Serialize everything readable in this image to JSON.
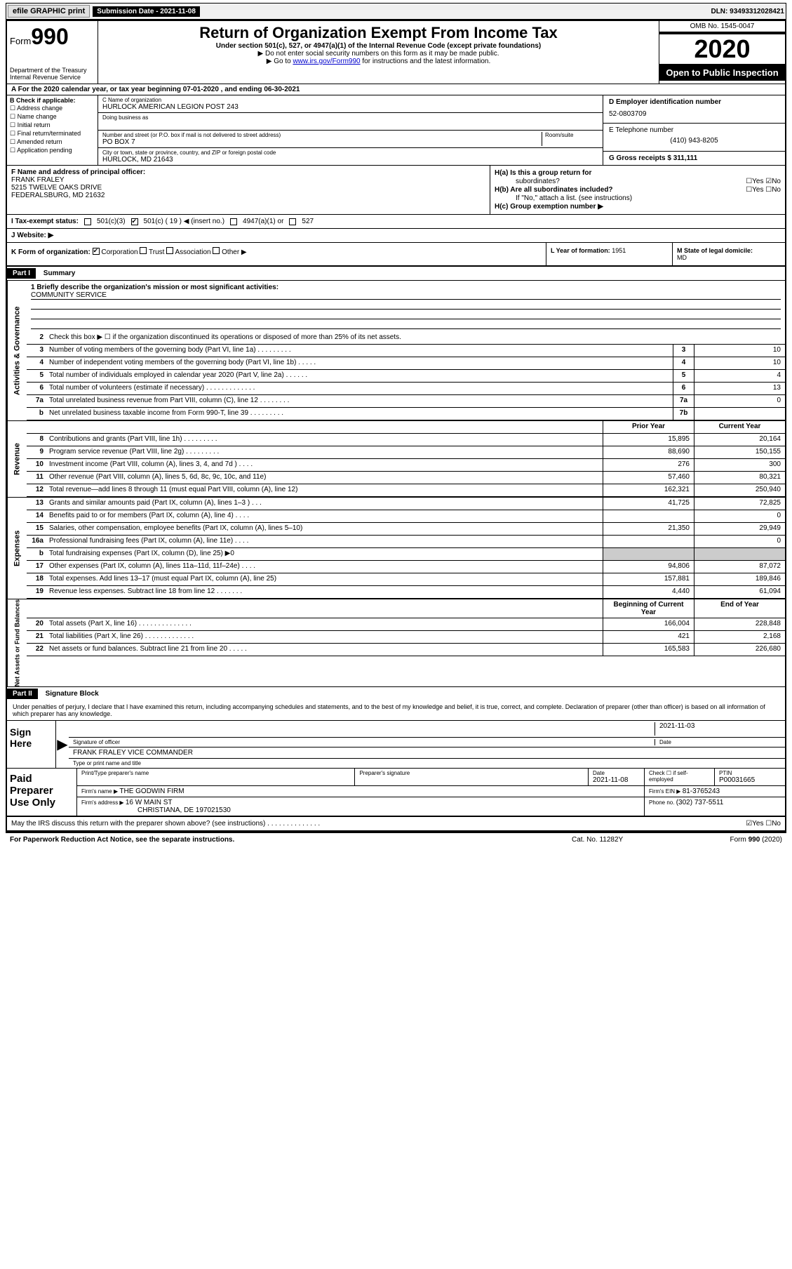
{
  "topbar": {
    "efile": "efile GRAPHIC print",
    "submission_label": "Submission Date - 2021-11-08",
    "dln": "DLN: 93493312028421"
  },
  "header": {
    "form_prefix": "Form",
    "form_number": "990",
    "dept": "Department of the Treasury\nInternal Revenue Service",
    "title": "Return of Organization Exempt From Income Tax",
    "subtitle": "Under section 501(c), 527, or 4947(a)(1) of the Internal Revenue Code (except private foundations)",
    "line1": "▶ Do not enter social security numbers on this form as it may be made public.",
    "line2_pre": "▶ Go to ",
    "line2_link": "www.irs.gov/Form990",
    "line2_post": " for instructions and the latest information.",
    "omb": "OMB No. 1545-0047",
    "year": "2020",
    "inspection": "Open to Public Inspection"
  },
  "line_a": "A For the 2020 calendar year, or tax year beginning 07-01-2020    , and ending 06-30-2021",
  "col_b": {
    "label": "B Check if applicable:",
    "opts": [
      "☐ Address change",
      "☐ Name change",
      "☐ Initial return",
      "☐ Final return/terminated",
      "☐ Amended return",
      "☐ Application pending"
    ]
  },
  "col_c": {
    "name_label": "C Name of organization",
    "name": "HURLOCK AMERICAN LEGION POST 243",
    "dba_label": "Doing business as",
    "street_label": "Number and street (or P.O. box if mail is not delivered to street address)",
    "room_label": "Room/suite",
    "street": "PO BOX 7",
    "city_label": "City or town, state or province, country, and ZIP or foreign postal code",
    "city": "HURLOCK, MD  21643"
  },
  "col_d": {
    "ein_label": "D Employer identification number",
    "ein": "52-0803709",
    "tel_label": "E Telephone number",
    "tel": "(410) 943-8205",
    "gross_label": "G Gross receipts $ ",
    "gross": "311,111"
  },
  "section_f": {
    "label": "F  Name and address of principal officer:",
    "name": "FRANK FRALEY",
    "addr1": "5215 TWELVE OAKS DRIVE",
    "addr2": "FEDERALSBURG, MD  21632"
  },
  "section_h": {
    "ha_label": "H(a)  Is this a group return for",
    "ha_sub": "subordinates?",
    "ha_yes": "☐Yes ☑No",
    "hb_label": "H(b)  Are all subordinates included?",
    "hb_yn": "☐Yes  ☐No",
    "hb_note": "If \"No,\" attach a list. (see instructions)",
    "hc_label": "H(c)  Group exemption number ▶"
  },
  "tax_status": {
    "label": "I    Tax-exempt status:",
    "opt1": "501(c)(3)",
    "opt2": "501(c) ( 19 ) ◀ (insert no.)",
    "opt3": "4947(a)(1) or",
    "opt4": "527"
  },
  "website": {
    "label": "J   Website: ▶"
  },
  "kl": {
    "k_label": "K Form of organization:",
    "k_corp": "Corporation",
    "k_trust": "Trust",
    "k_assoc": "Association",
    "k_other": "Other ▶",
    "l_label": "L Year of formation: ",
    "l_val": "1951",
    "m_label": "M State of legal domicile:",
    "m_val": "MD"
  },
  "part1": {
    "header": "Part I",
    "title": "Summary",
    "q1_label": "1  Briefly describe the organization's mission or most significant activities:",
    "q1_val": "COMMUNITY SERVICE",
    "q2": "Check this box ▶ ☐  if the organization discontinued its operations or disposed of more than 25% of its net assets.",
    "vert_ag": "Activities & Governance",
    "vert_rev": "Revenue",
    "vert_exp": "Expenses",
    "vert_na": "Net Assets or Fund Balances"
  },
  "rows_ag": [
    {
      "n": "3",
      "d": "Number of voting members of the governing body (Part VI, line 1a)  .   .   .   .   .   .   .   .   .",
      "b": "3",
      "v": "10"
    },
    {
      "n": "4",
      "d": "Number of independent voting members of the governing body (Part VI, line 1b)  .   .   .   .   .",
      "b": "4",
      "v": "10"
    },
    {
      "n": "5",
      "d": "Total number of individuals employed in calendar year 2020 (Part V, line 2a)  .   .   .   .   .   .",
      "b": "5",
      "v": "4"
    },
    {
      "n": "6",
      "d": "Total number of volunteers (estimate if necessary)  .   .   .   .   .   .   .   .   .   .   .   .   .",
      "b": "6",
      "v": "13"
    },
    {
      "n": "7a",
      "d": "Total unrelated business revenue from Part VIII, column (C), line 12  .   .   .   .   .   .   .   .",
      "b": "7a",
      "v": "0"
    },
    {
      "n": "b",
      "d": "Net unrelated business taxable income from Form 990-T, line 39  .   .   .   .   .   .   .   .   .",
      "b": "7b",
      "v": ""
    }
  ],
  "twocol_h": {
    "prior": "Prior Year",
    "curr": "Current Year"
  },
  "rows_rev": [
    {
      "n": "8",
      "d": "Contributions and grants (Part VIII, line 1h)  .   .   .   .   .   .   .   .   .",
      "p": "15,895",
      "c": "20,164"
    },
    {
      "n": "9",
      "d": "Program service revenue (Part VIII, line 2g)  .   .   .   .   .   .   .   .   .",
      "p": "88,690",
      "c": "150,155"
    },
    {
      "n": "10",
      "d": "Investment income (Part VIII, column (A), lines 3, 4, and 7d )  .   .   .   .",
      "p": "276",
      "c": "300"
    },
    {
      "n": "11",
      "d": "Other revenue (Part VIII, column (A), lines 5, 6d, 8c, 9c, 10c, and 11e)",
      "p": "57,460",
      "c": "80,321"
    },
    {
      "n": "12",
      "d": "Total revenue—add lines 8 through 11 (must equal Part VIII, column (A), line 12)",
      "p": "162,321",
      "c": "250,940"
    }
  ],
  "rows_exp": [
    {
      "n": "13",
      "d": "Grants and similar amounts paid (Part IX, column (A), lines 1–3 )  .   .   .",
      "p": "41,725",
      "c": "72,825"
    },
    {
      "n": "14",
      "d": "Benefits paid to or for members (Part IX, column (A), line 4)  .   .   .   .",
      "p": "",
      "c": "0"
    },
    {
      "n": "15",
      "d": "Salaries, other compensation, employee benefits (Part IX, column (A), lines 5–10)",
      "p": "21,350",
      "c": "29,949"
    },
    {
      "n": "16a",
      "d": "Professional fundraising fees (Part IX, column (A), line 11e)  .   .   .   .",
      "p": "",
      "c": "0"
    },
    {
      "n": "b",
      "d": "Total fundraising expenses (Part IX, column (D), line 25) ▶0",
      "p": "SHADE",
      "c": "SHADE"
    },
    {
      "n": "17",
      "d": "Other expenses (Part IX, column (A), lines 11a–11d, 11f–24e)  .   .   .   .",
      "p": "94,806",
      "c": "87,072"
    },
    {
      "n": "18",
      "d": "Total expenses. Add lines 13–17 (must equal Part IX, column (A), line 25)",
      "p": "157,881",
      "c": "189,846"
    },
    {
      "n": "19",
      "d": "Revenue less expenses. Subtract line 18 from line 12  .   .   .   .   .   .   .",
      "p": "4,440",
      "c": "61,094"
    }
  ],
  "twocol_h2": {
    "prior": "Beginning of Current Year",
    "curr": "End of Year"
  },
  "rows_na": [
    {
      "n": "20",
      "d": "Total assets (Part X, line 16)  .   .   .   .   .   .   .   .   .   .   .   .   .   .",
      "p": "166,004",
      "c": "228,848"
    },
    {
      "n": "21",
      "d": "Total liabilities (Part X, line 26)  .   .   .   .   .   .   .   .   .   .   .   .   .",
      "p": "421",
      "c": "2,168"
    },
    {
      "n": "22",
      "d": "Net assets or fund balances. Subtract line 21 from line 20  .   .   .   .   .",
      "p": "165,583",
      "c": "226,680"
    }
  ],
  "part2": {
    "header": "Part II",
    "title": "Signature Block",
    "penalty": "Under penalties of perjury, I declare that I have examined this return, including accompanying schedules and statements, and to the best of my knowledge and belief, it is true, correct, and complete. Declaration of preparer (other than officer) is based on all information of which preparer has any knowledge."
  },
  "sign": {
    "here": "Sign Here",
    "sig_label": "Signature of officer",
    "date": "2021-11-03",
    "date_label": "Date",
    "typed": "FRANK FRALEY VICE COMMANDER",
    "typed_label": "Type or print name and title"
  },
  "paid": {
    "label": "Paid Preparer Use Only",
    "h1": "Print/Type preparer's name",
    "h2": "Preparer's signature",
    "h3": "Date",
    "h3v": "2021-11-08",
    "h4": "Check ☐ if self-employed",
    "h5": "PTIN",
    "h5v": "P00031665",
    "firm_label": "Firm's name    ▶ ",
    "firm": "THE GODWIN FIRM",
    "ein_label": "Firm's EIN ▶ ",
    "ein": "81-3765243",
    "addr_label": "Firm's address ▶ ",
    "addr1": "16 W MAIN ST",
    "addr2": "CHRISTIANA, DE  197021530",
    "phone_label": "Phone no. ",
    "phone": "(302) 737-5511"
  },
  "may": {
    "q": "May the IRS discuss this return with the preparer shown above? (see instructions)  .   .   .   .   .   .   .   .   .   .   .   .   .   .",
    "yn": "☑Yes  ☐No"
  },
  "footer": {
    "left": "For Paperwork Reduction Act Notice, see the separate instructions.",
    "mid": "Cat. No. 11282Y",
    "right": "Form 990 (2020)"
  }
}
